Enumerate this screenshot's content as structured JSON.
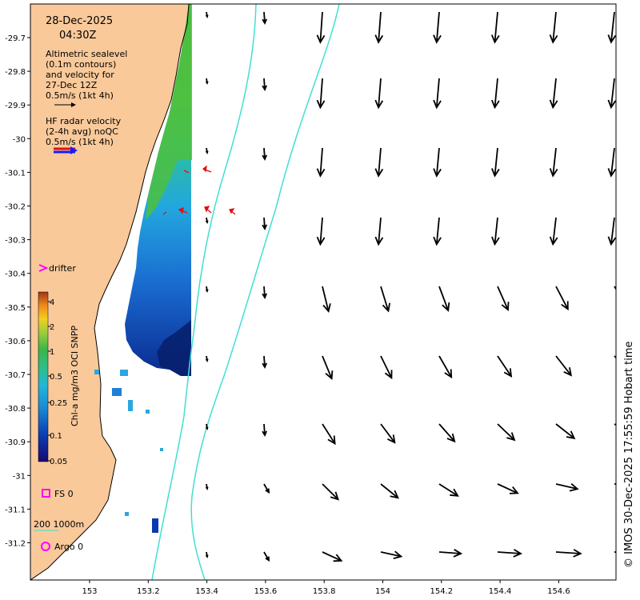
{
  "title": {
    "date": "28-Dec-2025",
    "time": "04:30Z"
  },
  "altimetry_legend": {
    "lines": [
      "Altimetric sealevel",
      "(0.1m contours)",
      "and velocity for",
      "27-Dec 12Z",
      "0.5m/s (1kt 4h)"
    ]
  },
  "radar_legend": {
    "lines": [
      "HF radar velocity",
      "(2-4h avg) noQC",
      "0.5m/s (1kt 4h)"
    ]
  },
  "drifter_label": "drifter",
  "colorbar": {
    "label": "Chl-a mg/m3 OCI SNPP",
    "ticks": [
      "4",
      "2",
      "1",
      "0.5",
      "0.25",
      "0.1",
      "0.05"
    ]
  },
  "fs_label": "FS 0",
  "scale_label": "200  1000m",
  "argo_label": "Argo 0",
  "credit": "© IMOS 30-Dec-2025 17:55:59 Hobart time",
  "x_ticks": [
    "153",
    "153.2",
    "153.4",
    "153.6",
    "153.8",
    "154",
    "154.2",
    "154.4",
    "154.6"
  ],
  "y_ticks": [
    "-29.7",
    "-29.8",
    "-29.9",
    "-30",
    "-30.1",
    "-30.2",
    "-30.3",
    "-30.4",
    "-30.5",
    "-30.6",
    "-30.7",
    "-30.8",
    "-30.9",
    "-31",
    "-31.1",
    "-31.2"
  ],
  "colors": {
    "land": "#f9c99a",
    "contour": "#40e0d0",
    "radar": "#e01010",
    "drifter": "#ff00ff",
    "deep_chl": "#08206e",
    "mid_chl": "#2aa6e0",
    "high_chl": "#39b54a"
  }
}
